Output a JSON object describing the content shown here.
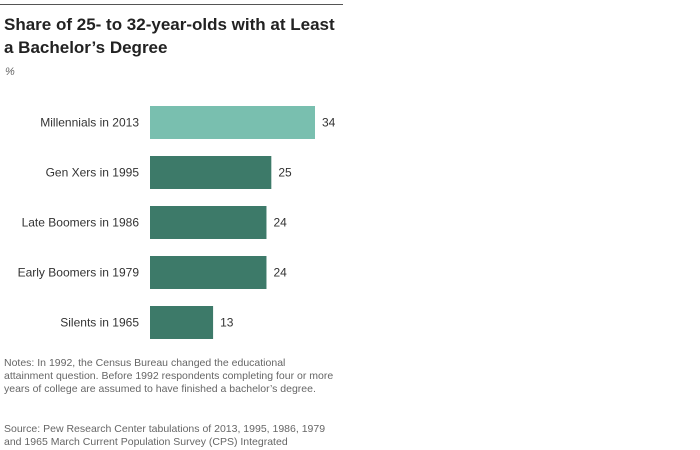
{
  "chart_data": {
    "type": "bar",
    "orientation": "horizontal",
    "title": "Share of 25- to 32-year-olds with at Least a Bachelor’s Degree",
    "unit": "%",
    "categories": [
      "Millennials in 2013",
      "Gen Xers in 1995",
      "Late Boomers in 1986",
      "Early Boomers in 1979",
      "Silents in 1965"
    ],
    "values": [
      34,
      25,
      24,
      24,
      13
    ],
    "colors": [
      "#79bfaf",
      "#3d7a69",
      "#3d7a69",
      "#3d7a69",
      "#3d7a69"
    ],
    "xlim": [
      0,
      34
    ],
    "grid": false,
    "legend": "none"
  },
  "notes": "Notes: In 1992, the Census Bureau changed the educational attainment question. Before 1992 respondents completing four or more years of college are assumed to have finished a bachelor’s degree.",
  "source": "Source: Pew Research Center tabulations of 2013, 1995, 1986, 1979 and 1965 March Current Population Survey (CPS) Integrated"
}
